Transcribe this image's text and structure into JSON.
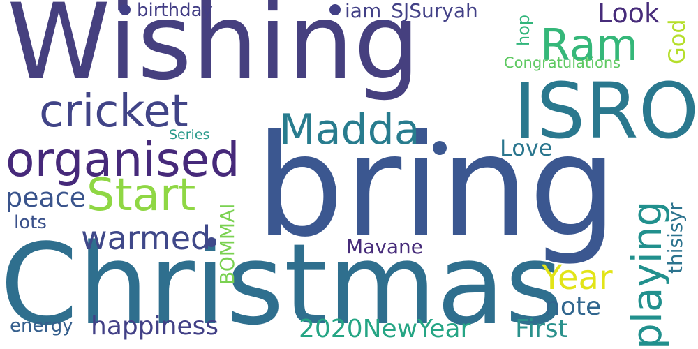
{
  "words": [
    {
      "text": "Wishing",
      "color": "#46407f",
      "rotated": false
    },
    {
      "text": "bring",
      "color": "#3b5790",
      "rotated": false
    },
    {
      "text": "Christmas",
      "color": "#2f6f8e",
      "rotated": false
    },
    {
      "text": "ISRO",
      "color": "#2a788e",
      "rotated": false
    },
    {
      "text": "organised",
      "color": "#46297a",
      "rotated": false
    },
    {
      "text": "cricket",
      "color": "#414487",
      "rotated": false
    },
    {
      "text": "Madda",
      "color": "#287c8e",
      "rotated": false
    },
    {
      "text": "Start",
      "color": "#8fd744",
      "rotated": false
    },
    {
      "text": "Ram",
      "color": "#35b779",
      "rotated": false
    },
    {
      "text": "playing",
      "color": "#21908d",
      "rotated": true
    },
    {
      "text": "warmed",
      "color": "#3f4889",
      "rotated": false
    },
    {
      "text": "happiness",
      "color": "#424086",
      "rotated": false
    },
    {
      "text": "2020NewYear",
      "color": "#25a584",
      "rotated": false
    },
    {
      "text": "Year",
      "color": "#e2e418",
      "rotated": false
    },
    {
      "text": "note",
      "color": "#31668e",
      "rotated": false
    },
    {
      "text": "First",
      "color": "#2b918c",
      "rotated": false
    },
    {
      "text": "Look",
      "color": "#472c7a",
      "rotated": false
    },
    {
      "text": "Love",
      "color": "#2a768e",
      "rotated": false
    },
    {
      "text": "peace",
      "color": "#3a548c",
      "rotated": false
    },
    {
      "text": "BOMMAI",
      "color": "#7ad151",
      "rotated": true
    },
    {
      "text": "Mavane",
      "color": "#472c7a",
      "rotated": false
    },
    {
      "text": "thisisyr",
      "color": "#2c738e",
      "rotated": true
    },
    {
      "text": "God",
      "color": "#b5de2b",
      "rotated": true
    },
    {
      "text": "hop",
      "color": "#31b57b",
      "rotated": true
    },
    {
      "text": "Congratulations",
      "color": "#5ec962",
      "rotated": false
    },
    {
      "text": "iam_SJSuryah",
      "color": "#424086",
      "rotated": false
    },
    {
      "text": "birthday",
      "color": "#433e85",
      "rotated": false
    },
    {
      "text": "Series",
      "color": "#2a9a8b",
      "rotated": false
    },
    {
      "text": "lots",
      "color": "#3b528b",
      "rotated": false
    },
    {
      "text": "energy",
      "color": "#355f8d",
      "rotated": false
    }
  ],
  "bullets": [
    {
      "color": "#424086"
    },
    {
      "color": "#424086"
    },
    {
      "color": "#3b5790"
    },
    {
      "color": "#3f4889"
    }
  ]
}
